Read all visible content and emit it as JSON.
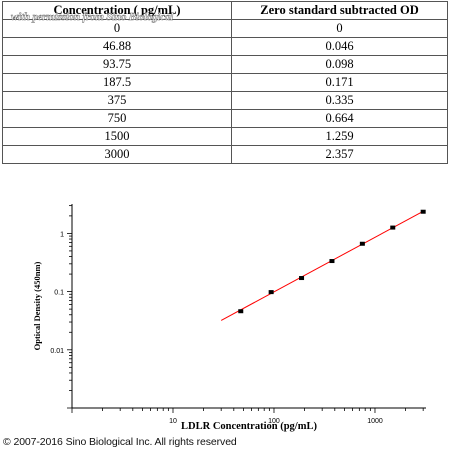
{
  "table": {
    "headers": [
      "Concentration ( pg/mL)",
      "Zero standard subtracted OD"
    ],
    "rows": [
      [
        "0",
        "0"
      ],
      [
        "46.88",
        "0.046"
      ],
      [
        "93.75",
        "0.098"
      ],
      [
        "187.5",
        "0.171"
      ],
      [
        "375",
        "0.335"
      ],
      [
        "750",
        "0.664"
      ],
      [
        "1500",
        "1.259"
      ],
      [
        "3000",
        "2.357"
      ]
    ]
  },
  "watermark": "with permission from Sino Biological",
  "chart_data": {
    "type": "scatter",
    "xlabel": "LDLR Concentration (pg/mL)",
    "ylabel": "Optical Density (450nm)",
    "x_scale": "log",
    "y_scale": "log",
    "xlim": [
      1,
      3200
    ],
    "ylim": [
      0.001,
      3.2
    ],
    "x_ticks": [
      10,
      100,
      1000
    ],
    "x_tick_labels": [
      "10",
      "100",
      "1000"
    ],
    "y_ticks": [
      0.01,
      0.1,
      1
    ],
    "y_tick_labels": [
      "0.01",
      "0.1",
      "1"
    ],
    "grid": false,
    "points": {
      "x": [
        46.88,
        93.75,
        187.5,
        375,
        750,
        1500,
        3000
      ],
      "y": [
        0.046,
        0.098,
        0.171,
        0.335,
        0.664,
        1.259,
        2.357
      ]
    },
    "fit_line": {
      "x": [
        30,
        3000
      ],
      "y": [
        0.032,
        2.4
      ]
    },
    "colors": {
      "points": "#000000",
      "fit_line": "#ff0000"
    }
  },
  "copyright": "© 2007-2016 Sino Biological Inc. All rights reserved"
}
